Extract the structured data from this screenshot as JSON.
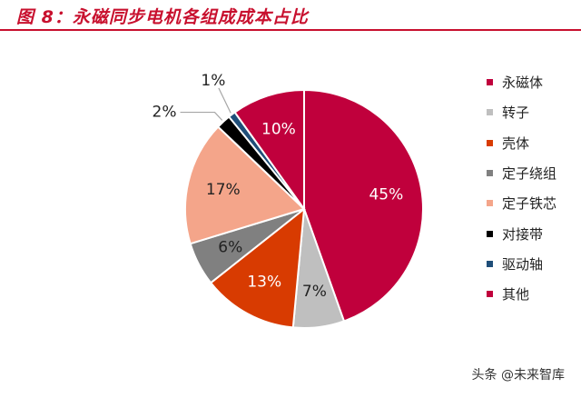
{
  "header": {
    "title": "图 8：永磁同步电机各组成成本占比"
  },
  "watermark": "头条 @未来智库",
  "chart_data": {
    "type": "pie",
    "title": "",
    "slices": [
      {
        "label": "永磁体",
        "value": 45,
        "value_label": "45%",
        "color": "#c0003c"
      },
      {
        "label": "转子",
        "value": 7,
        "value_label": "7%",
        "color": "#bfbfbf"
      },
      {
        "label": "壳体",
        "value": 13,
        "value_label": "13%",
        "color": "#d83b01"
      },
      {
        "label": "定子绕组",
        "value": 6,
        "value_label": "6%",
        "color": "#808080"
      },
      {
        "label": "定子铁芯",
        "value": 17,
        "value_label": "17%",
        "color": "#f4a58a"
      },
      {
        "label": "对接带",
        "value": 2,
        "value_label": "2%",
        "color": "#000000"
      },
      {
        "label": "驱动轴",
        "value": 1,
        "value_label": "1%",
        "color": "#1f4e79"
      },
      {
        "label": "其他",
        "value": 10,
        "value_label": "10%",
        "color": "#c0003c"
      }
    ],
    "start_angle_deg": 0,
    "direction": "clockwise",
    "legend_position": "right"
  }
}
